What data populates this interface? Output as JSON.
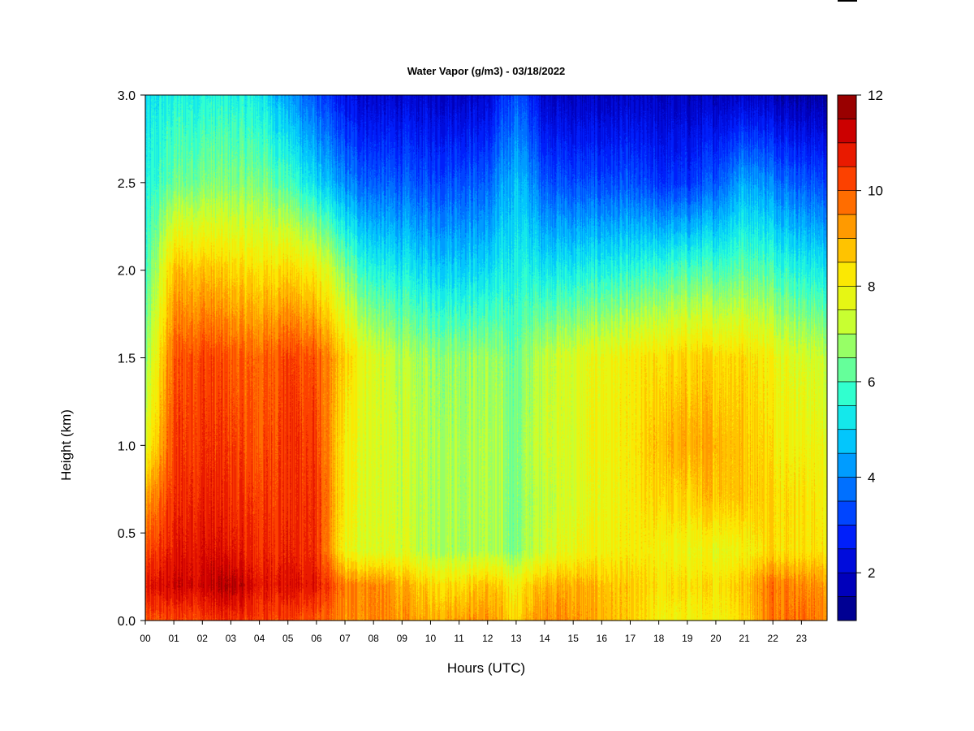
{
  "chart_data": {
    "type": "heatmap",
    "title": "Water Vapor (g/m3) - 03/18/2022",
    "xlabel": "Hours (UTC)",
    "ylabel": "Height (km)",
    "x_tick_labels": [
      "00",
      "01",
      "02",
      "03",
      "04",
      "05",
      "06",
      "07",
      "08",
      "09",
      "10",
      "11",
      "12",
      "13",
      "14",
      "15",
      "16",
      "17",
      "18",
      "19",
      "20",
      "21",
      "22",
      "23"
    ],
    "y_tick_labels": [
      "0.0",
      "0.5",
      "1.0",
      "1.5",
      "2.0",
      "2.5",
      "3.0"
    ],
    "xlim": [
      0,
      23.9
    ],
    "ylim": [
      0.0,
      3.0
    ],
    "colorbar": {
      "min": 1,
      "max": 12,
      "step": 0.5,
      "tick_labels": [
        "2",
        "4",
        "6",
        "8",
        "10",
        "12"
      ]
    },
    "colormap": [
      "#00007f",
      "#0000c8",
      "#0022ff",
      "#0070ff",
      "#00c0ff",
      "#20ffe0",
      "#7fff80",
      "#d8ff20",
      "#ffe600",
      "#ff9a00",
      "#ff4800",
      "#dd0000",
      "#7f0000"
    ],
    "heights_km": [
      0.0,
      0.2,
      0.4,
      0.7,
      1.0,
      1.5,
      2.0,
      2.5,
      3.0
    ],
    "times_hours": [
      0,
      1,
      2,
      3,
      4,
      5,
      6,
      7,
      8,
      9,
      10,
      11,
      12,
      13,
      14,
      15,
      16,
      17,
      18,
      19,
      20,
      21,
      22,
      23,
      23.9
    ],
    "values_gm3": [
      [
        10.0,
        10.7,
        10.0,
        9.0,
        7.5,
        6.5,
        5.7,
        5.3,
        5.0
      ],
      [
        10.2,
        11.2,
        10.8,
        10.5,
        10.3,
        10.0,
        8.8,
        6.3,
        5.5
      ],
      [
        10.3,
        11.2,
        11.0,
        10.7,
        10.5,
        10.3,
        8.8,
        6.5,
        5.5
      ],
      [
        10.5,
        11.5,
        10.8,
        10.5,
        10.3,
        10.0,
        8.5,
        6.5,
        5.5
      ],
      [
        10.3,
        10.8,
        10.5,
        10.3,
        10.0,
        9.8,
        8.3,
        6.5,
        5.3
      ],
      [
        10.3,
        11.0,
        10.7,
        10.5,
        10.5,
        10.3,
        8.5,
        6.0,
        4.3
      ],
      [
        10.0,
        10.8,
        10.5,
        10.5,
        10.3,
        10.0,
        8.0,
        5.0,
        3.3
      ],
      [
        9.3,
        9.5,
        7.8,
        8.0,
        8.0,
        8.5,
        6.5,
        4.0,
        2.3
      ],
      [
        9.5,
        9.5,
        7.5,
        7.5,
        7.5,
        7.5,
        5.5,
        3.5,
        2.0
      ],
      [
        9.3,
        9.0,
        7.5,
        7.3,
        7.3,
        7.0,
        5.3,
        3.5,
        2.0
      ],
      [
        9.0,
        8.5,
        7.0,
        7.0,
        7.0,
        6.8,
        5.0,
        3.3,
        2.0
      ],
      [
        9.3,
        8.5,
        7.0,
        7.0,
        7.0,
        6.8,
        5.0,
        3.5,
        2.0
      ],
      [
        9.3,
        8.8,
        7.0,
        7.0,
        7.0,
        6.8,
        5.0,
        3.5,
        2.0
      ],
      [
        8.5,
        8.0,
        6.5,
        6.5,
        6.5,
        6.3,
        5.5,
        4.8,
        3.5
      ],
      [
        9.5,
        9.0,
        7.5,
        7.3,
        7.5,
        7.3,
        5.3,
        3.5,
        2.0
      ],
      [
        9.3,
        9.0,
        7.8,
        7.5,
        7.5,
        7.5,
        5.3,
        3.3,
        1.8
      ],
      [
        9.0,
        8.8,
        8.0,
        7.8,
        8.0,
        7.8,
        5.5,
        3.3,
        1.8
      ],
      [
        8.5,
        8.5,
        8.0,
        8.0,
        8.0,
        8.0,
        5.5,
        3.3,
        1.8
      ],
      [
        8.0,
        8.3,
        8.0,
        8.5,
        8.8,
        8.3,
        5.8,
        3.0,
        1.8
      ],
      [
        8.0,
        8.3,
        7.8,
        8.5,
        9.0,
        8.5,
        6.0,
        3.0,
        1.8
      ],
      [
        8.0,
        8.3,
        7.8,
        8.8,
        9.0,
        8.5,
        6.0,
        3.5,
        1.8
      ],
      [
        8.5,
        8.8,
        8.0,
        8.8,
        8.8,
        8.5,
        6.3,
        4.5,
        2.0
      ],
      [
        9.8,
        9.8,
        8.5,
        8.5,
        8.3,
        8.0,
        6.0,
        4.0,
        1.8
      ],
      [
        9.8,
        9.5,
        8.3,
        8.3,
        8.0,
        7.5,
        5.5,
        3.5,
        1.5
      ],
      [
        9.5,
        9.3,
        8.3,
        8.0,
        7.8,
        7.3,
        5.3,
        3.3,
        1.5
      ]
    ]
  }
}
